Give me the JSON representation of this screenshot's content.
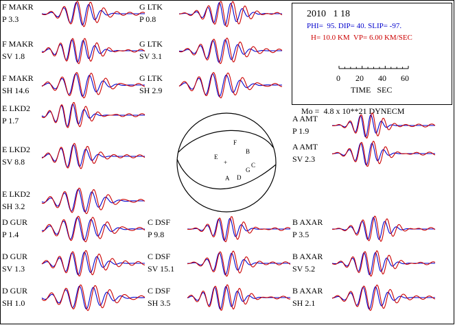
{
  "header": {
    "date": "2010   1 18",
    "mechanism": "PHI=  95. DIP= 40. SLIP= -97.",
    "model": "H= 10.0 KM  VP= 6.00 KM/SEC"
  },
  "time_scale": {
    "ticks": [
      "0",
      "20",
      "40",
      "60"
    ],
    "label": "TIME   SEC"
  },
  "moment": "Mo =  4.8 x 10**21 DYNECM",
  "traces": [
    {
      "station": "F MAKR",
      "phase": "P",
      "amplitude": "3.3"
    },
    {
      "station": "F MAKR",
      "phase": "SV",
      "amplitude": "1.8"
    },
    {
      "station": "F MAKR",
      "phase": "SH",
      "amplitude": "14.6"
    },
    {
      "station": "E LKD2",
      "phase": "P",
      "amplitude": "1.7"
    },
    {
      "station": "E LKD2",
      "phase": "SV",
      "amplitude": "8.8"
    },
    {
      "station": "E LKD2",
      "phase": "SH",
      "amplitude": "3.2"
    },
    {
      "station": "D GUR",
      "phase": "P",
      "amplitude": "1.4"
    },
    {
      "station": "D GUR",
      "phase": "SV",
      "amplitude": "1.3"
    },
    {
      "station": "D GUR",
      "phase": "SH",
      "amplitude": "1.0"
    },
    {
      "station": "G LTK",
      "phase": "P",
      "amplitude": "0.8"
    },
    {
      "station": "G LTK",
      "phase": "SV",
      "amplitude": "3.1"
    },
    {
      "station": "G LTK",
      "phase": "SH",
      "amplitude": "2.9"
    },
    {
      "station": "C DSF",
      "phase": "P",
      "amplitude": "9.8"
    },
    {
      "station": "C DSF",
      "phase": "SV",
      "amplitude": "15.1"
    },
    {
      "station": "C DSF",
      "phase": "SH",
      "amplitude": "3.5"
    },
    {
      "station": "A AMT",
      "phase": "P",
      "amplitude": "1.9"
    },
    {
      "station": "A AMT",
      "phase": "SV",
      "amplitude": "2.3"
    },
    {
      "station": "B AXAR",
      "phase": "P",
      "amplitude": "3.5"
    },
    {
      "station": "B AXAR",
      "phase": "SV",
      "amplitude": "5.2"
    },
    {
      "station": "B AXAR",
      "phase": "SH",
      "amplitude": "2.1"
    }
  ],
  "focal_sphere": {
    "stations": [
      "F",
      "B",
      "E",
      "C",
      "G",
      "A",
      "D"
    ],
    "center_mark": "+"
  },
  "colors": {
    "observed": "#cc0000",
    "synthetic": "#0000cc",
    "ink": "#000000"
  }
}
